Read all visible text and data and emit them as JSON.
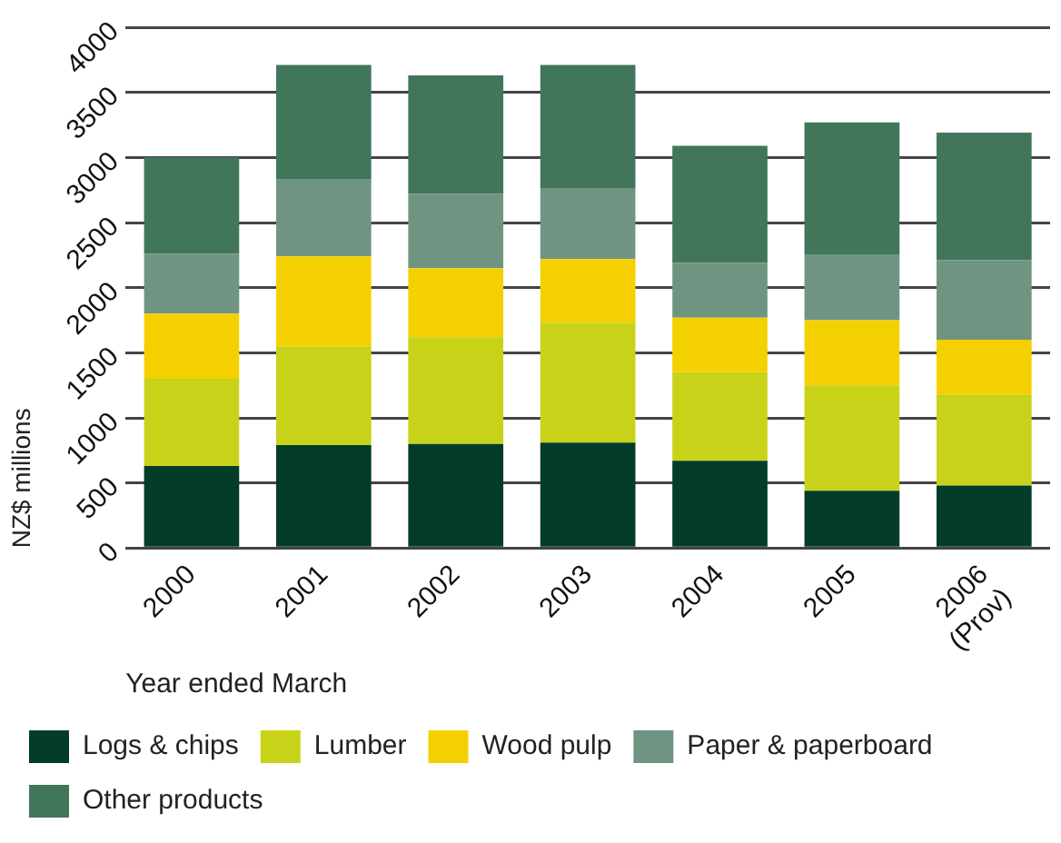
{
  "chart_data": {
    "type": "bar",
    "stacked": true,
    "xlabel": "Year ended March",
    "ylabel": "NZ$ millions",
    "categories": [
      "2000",
      "2001",
      "2002",
      "2003",
      "2004",
      "2005",
      "2006 (Prov)"
    ],
    "series": [
      {
        "name": "Logs & chips",
        "color": "#033c28",
        "values": [
          630,
          790,
          800,
          810,
          670,
          440,
          480
        ]
      },
      {
        "name": "Lumber",
        "color": "#c8d218",
        "values": [
          670,
          760,
          820,
          920,
          680,
          810,
          700
        ]
      },
      {
        "name": "Wood pulp",
        "color": "#f5d000",
        "values": [
          500,
          690,
          530,
          490,
          420,
          500,
          420
        ]
      },
      {
        "name": "Paper & paperboard",
        "color": "#6f9582",
        "values": [
          460,
          590,
          570,
          540,
          420,
          500,
          610
        ]
      },
      {
        "name": "Other products",
        "color": "#41765b",
        "values": [
          740,
          880,
          910,
          950,
          900,
          1020,
          980
        ]
      }
    ],
    "ylim": [
      0,
      4000
    ],
    "yticks": [
      0,
      500,
      1000,
      1500,
      2000,
      2500,
      3000,
      3500,
      4000
    ],
    "grid": "y",
    "legend": "bottom"
  }
}
